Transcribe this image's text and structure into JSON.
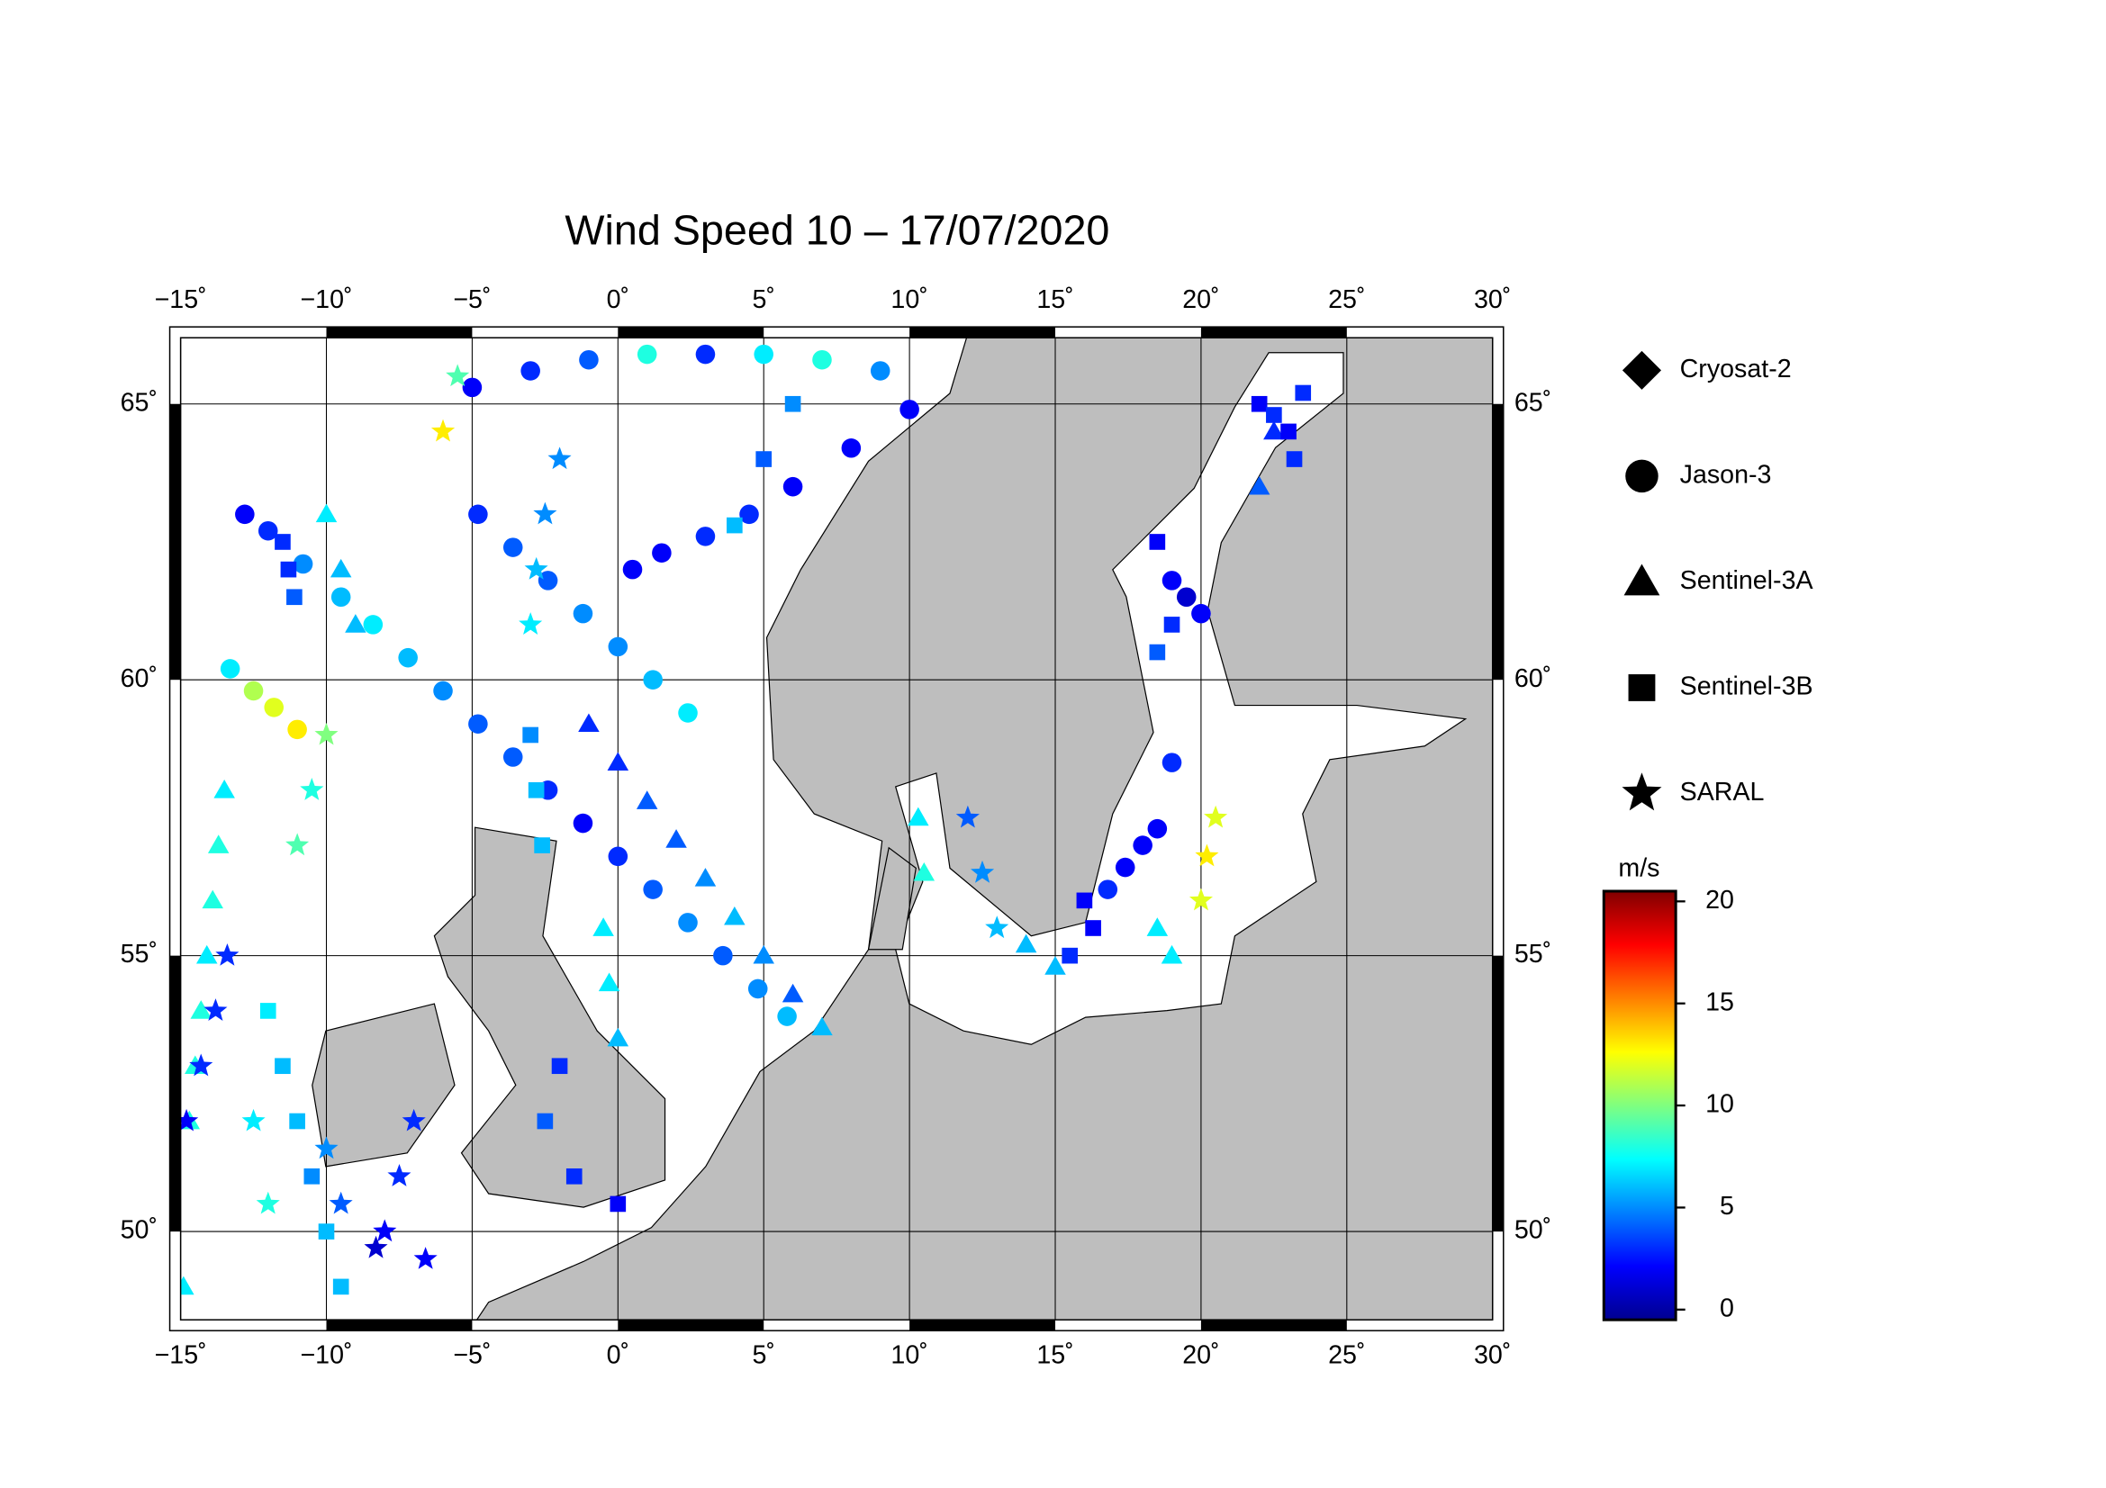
{
  "chart_data": {
    "type": "scatter",
    "title": "Wind Speed 10 – 17/07/2020",
    "xlim": [
      -15,
      30
    ],
    "ylim": [
      48.4,
      66.2
    ],
    "xticks": [
      {
        "value": -15,
        "label": "−15˚"
      },
      {
        "value": -10,
        "label": "−10˚"
      },
      {
        "value": -5,
        "label": "−5˚"
      },
      {
        "value": 0,
        "label": "0˚"
      },
      {
        "value": 5,
        "label": "5˚"
      },
      {
        "value": 10,
        "label": "10˚"
      },
      {
        "value": 15,
        "label": "15˚"
      },
      {
        "value": 20,
        "label": "20˚"
      },
      {
        "value": 25,
        "label": "25˚"
      },
      {
        "value": 30,
        "label": "30˚"
      }
    ],
    "yticks": [
      {
        "value": 50,
        "label": "50˚"
      },
      {
        "value": 55,
        "label": "55˚"
      },
      {
        "value": 60,
        "label": "60˚"
      },
      {
        "value": 65,
        "label": "65˚"
      }
    ],
    "grid": true,
    "colorbar": {
      "label": "m/s",
      "lim": [
        -0.5,
        20.5
      ],
      "ticks": [
        0,
        5,
        10,
        15,
        20
      ]
    },
    "series": [
      {
        "name": "Cryosat-2",
        "marker": "diamond",
        "x": [],
        "y": [],
        "values": []
      },
      {
        "name": "Jason-3",
        "marker": "circle",
        "x": [
          -12.8,
          -12,
          -10.8,
          -9.5,
          -8.4,
          -7.2,
          -6,
          -4.8,
          -3.6,
          -2.4,
          -1.2,
          0,
          1.2,
          2.4,
          3.6,
          4.8,
          5.8,
          -4.8,
          -3.6,
          -2.4,
          -1.2,
          0,
          1.2,
          2.4,
          -5,
          -3,
          -1,
          1,
          3,
          5,
          7,
          9,
          0.5,
          1.5,
          3,
          4.5,
          6,
          8,
          10,
          19,
          19.5,
          20,
          19,
          18.5,
          18,
          17.4,
          16.8,
          -13.3,
          -12.5,
          -11.8,
          -11
        ],
        "y": [
          63,
          62.7,
          62.1,
          61.5,
          61,
          60.4,
          59.8,
          59.2,
          58.6,
          58,
          57.4,
          56.8,
          56.2,
          55.6,
          55,
          54.4,
          53.9,
          63,
          62.4,
          61.8,
          61.2,
          60.6,
          60,
          59.4,
          65.3,
          65.6,
          65.8,
          65.9,
          65.9,
          65.9,
          65.8,
          65.6,
          62,
          62.3,
          62.6,
          63,
          63.5,
          64.2,
          64.9,
          61.8,
          61.5,
          61.2,
          58.5,
          57.3,
          57,
          56.6,
          56.2,
          60.2,
          59.8,
          59.5,
          59.1
        ],
        "values": [
          2,
          3,
          5,
          6,
          7,
          6,
          5,
          4,
          4,
          3,
          2,
          3,
          4,
          5,
          4,
          5,
          6,
          3,
          4,
          4,
          5,
          5,
          6,
          7,
          2,
          3,
          4,
          8,
          3,
          7,
          8,
          5,
          2,
          2,
          3,
          3,
          2,
          2,
          2,
          2,
          1,
          2,
          3,
          2,
          2,
          2,
          3,
          7,
          11,
          12,
          13
        ]
      },
      {
        "name": "Sentinel-3A",
        "marker": "triangle",
        "x": [
          -1,
          0,
          1,
          2,
          3,
          4,
          5,
          6,
          7,
          -0.5,
          -0.3,
          0,
          -13.5,
          -13.7,
          -13.9,
          -14.1,
          -14.3,
          -14.5,
          -14.7,
          -14.9,
          -10,
          -9.5,
          -9,
          22,
          22.5,
          10.3,
          10.5,
          14,
          15,
          18.5,
          19
        ],
        "y": [
          59.2,
          58.5,
          57.8,
          57.1,
          56.4,
          55.7,
          55,
          54.3,
          53.7,
          55.5,
          54.5,
          53.5,
          58,
          57,
          56,
          55,
          54,
          53,
          52,
          49,
          63,
          62,
          61,
          63.5,
          64.5,
          57.5,
          56.5,
          55.2,
          54.8,
          55.5,
          55
        ],
        "values": [
          3,
          3,
          4,
          4,
          5,
          6,
          5,
          4,
          6,
          7,
          7,
          6,
          7,
          8,
          8,
          7,
          8,
          8,
          8,
          7,
          7,
          6,
          6,
          4,
          3,
          7,
          8,
          6,
          6,
          7,
          7
        ]
      },
      {
        "name": "Sentinel-3B",
        "marker": "square",
        "x": [
          -11.5,
          -11.3,
          -11.1,
          -12,
          -11.5,
          -11,
          -10.5,
          -10,
          -9.5,
          -3,
          -2.8,
          -2.6,
          22,
          22.5,
          23,
          23.5,
          23.2,
          18.5,
          19,
          18.5,
          16,
          16.3,
          15.5,
          -2,
          -2.5,
          -1.5,
          0,
          5,
          6,
          4
        ],
        "y": [
          62.5,
          62,
          61.5,
          54,
          53,
          52,
          51,
          50,
          49,
          59,
          58,
          57,
          65,
          64.8,
          64.5,
          65.2,
          64,
          62.5,
          61,
          60.5,
          56,
          55.5,
          55,
          53,
          52,
          51,
          50.5,
          64,
          65,
          62.8
        ],
        "values": [
          3,
          3,
          4,
          7,
          6,
          6,
          5,
          6,
          6,
          5,
          6,
          6,
          2,
          3,
          2,
          3,
          3,
          2,
          3,
          4,
          2,
          2,
          3,
          3,
          4,
          3,
          2,
          4,
          5,
          6
        ]
      },
      {
        "name": "SARAL",
        "marker": "star",
        "x": [
          -14.8,
          -14.3,
          -13.8,
          -13.4,
          -8,
          -7.5,
          -7,
          -6.6,
          -8.3,
          -9.5,
          -10,
          -12,
          -12.5,
          -11,
          -10.5,
          -10,
          -3,
          -2.8,
          -2.5,
          -2,
          20,
          20.2,
          20.5,
          12,
          12.5,
          13,
          -6,
          -5.5
        ],
        "y": [
          52,
          53,
          54,
          55,
          50,
          51,
          52,
          49.5,
          49.7,
          50.5,
          51.5,
          50.5,
          52,
          57,
          58,
          59,
          61,
          62,
          63,
          64,
          56,
          56.8,
          57.5,
          57.5,
          56.5,
          55.5,
          64.5,
          65.5
        ],
        "values": [
          2,
          3,
          3,
          3,
          2,
          3,
          3,
          2,
          1,
          4,
          5,
          8,
          7,
          9,
          8,
          10,
          7,
          6,
          5,
          5,
          12,
          13,
          12,
          4,
          5,
          6,
          13,
          9
        ]
      }
    ]
  }
}
